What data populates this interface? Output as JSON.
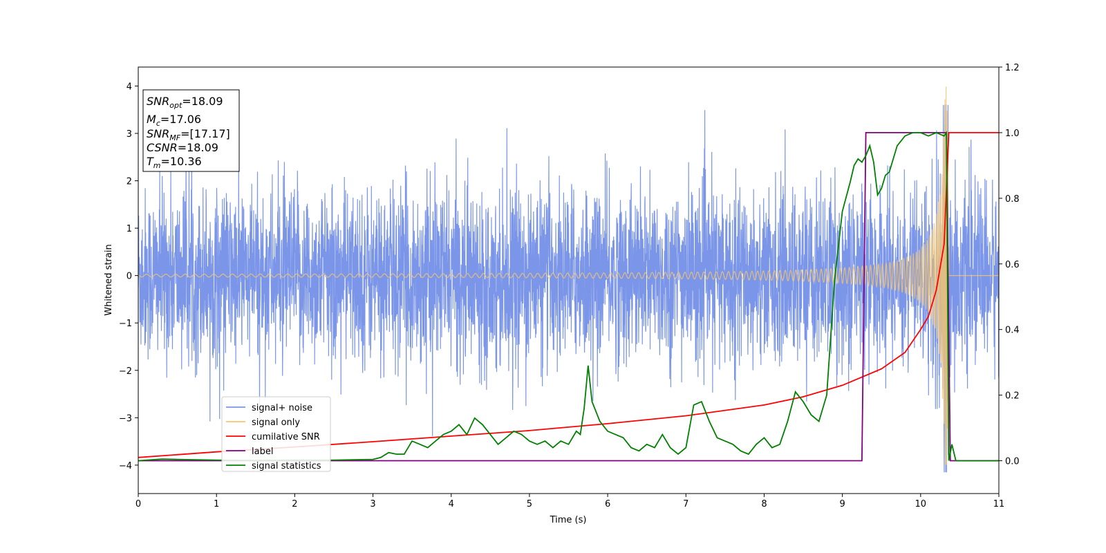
{
  "chart_data": {
    "type": "line",
    "xlabel": "Time (s)",
    "ylabel_left": "Whitened strain",
    "xlim": [
      0,
      11
    ],
    "ylim_left": [
      -4.6,
      4.4
    ],
    "ylim_right": [
      -0.1,
      1.2
    ],
    "x_ticks": [
      0,
      1,
      2,
      3,
      4,
      5,
      6,
      7,
      8,
      9,
      10,
      11
    ],
    "y_ticks_left": [
      -4,
      -3,
      -2,
      -1,
      0,
      1,
      2,
      3,
      4
    ],
    "y_ticks_right": [
      0.0,
      0.2,
      0.4,
      0.6,
      0.8,
      1.0,
      1.2
    ],
    "legend_position": "lower-left",
    "info_box": {
      "snr_opt": {
        "sym": "SNR",
        "sub": "opt",
        "value": "=18.09"
      },
      "mc": {
        "sym": "M",
        "sub": "c",
        "value": "=17.06"
      },
      "snr_mf": {
        "sym": "SNR",
        "sub": "MF",
        "value": "=[17.17]"
      },
      "csnr": {
        "sym": "CSNR",
        "sub": "",
        "value": "=18.09"
      },
      "tm": {
        "sym": "T",
        "sub": "m",
        "value": "=10.36"
      }
    },
    "series": [
      {
        "name": "signal+ noise",
        "axis": "left",
        "color": "#7b96e8",
        "description_values": "stochastic whitened noise, std about 0.9, peaks up to about ±3.6, plus signal",
        "noise_std": 0.9
      },
      {
        "name": "signal only",
        "axis": "left",
        "color": "#f5c46e",
        "chirp": {
          "t_merge": 10.36,
          "amp_start": 0.02,
          "amp_peak": 4.0,
          "f_start": 8,
          "f_peak": 60
        }
      },
      {
        "name": "cumilative SNR",
        "axis": "right",
        "color": "#ff0000",
        "x": [
          0,
          1,
          2,
          3,
          4,
          5,
          6,
          7,
          8,
          8.5,
          9,
          9.5,
          9.8,
          10.0,
          10.1,
          10.2,
          10.3,
          10.36,
          10.4,
          11
        ],
        "y": [
          0.01,
          0.027,
          0.042,
          0.058,
          0.075,
          0.092,
          0.113,
          0.137,
          0.17,
          0.195,
          0.23,
          0.28,
          0.33,
          0.4,
          0.44,
          0.52,
          0.66,
          1.0,
          1.0,
          1.0
        ]
      },
      {
        "name": "label",
        "axis": "right",
        "color": "#800080",
        "x": [
          0,
          9.25,
          9.3,
          10.33,
          10.38,
          11
        ],
        "y": [
          0,
          0,
          1,
          1,
          0,
          0
        ]
      },
      {
        "name": "signal statistics",
        "axis": "right",
        "color": "#008000",
        "x": [
          0,
          0.3,
          0.5,
          1.0,
          1.5,
          2.0,
          2.5,
          3.0,
          3.1,
          3.2,
          3.3,
          3.4,
          3.5,
          3.6,
          3.7,
          3.8,
          3.9,
          4.0,
          4.1,
          4.2,
          4.3,
          4.4,
          4.5,
          4.6,
          4.7,
          4.8,
          4.9,
          5.0,
          5.1,
          5.2,
          5.3,
          5.4,
          5.5,
          5.6,
          5.65,
          5.7,
          5.75,
          5.8,
          5.9,
          6.0,
          6.1,
          6.2,
          6.3,
          6.4,
          6.5,
          6.6,
          6.7,
          6.8,
          6.9,
          7.0,
          7.1,
          7.2,
          7.3,
          7.4,
          7.5,
          7.6,
          7.7,
          7.8,
          7.9,
          8.0,
          8.1,
          8.2,
          8.3,
          8.4,
          8.5,
          8.6,
          8.7,
          8.8,
          8.9,
          9.0,
          9.1,
          9.15,
          9.2,
          9.25,
          9.3,
          9.35,
          9.4,
          9.45,
          9.5,
          9.55,
          9.6,
          9.7,
          9.8,
          9.9,
          10.0,
          10.1,
          10.2,
          10.3,
          10.33,
          10.36,
          10.4,
          10.45,
          10.6,
          11
        ],
        "y": [
          0.0,
          0.005,
          0.004,
          0.002,
          0.001,
          0.002,
          0.002,
          0.004,
          0.01,
          0.025,
          0.02,
          0.02,
          0.06,
          0.05,
          0.04,
          0.06,
          0.08,
          0.09,
          0.11,
          0.08,
          0.13,
          0.11,
          0.08,
          0.05,
          0.07,
          0.09,
          0.08,
          0.06,
          0.05,
          0.06,
          0.04,
          0.06,
          0.05,
          0.09,
          0.08,
          0.16,
          0.29,
          0.18,
          0.12,
          0.09,
          0.08,
          0.07,
          0.04,
          0.03,
          0.05,
          0.04,
          0.08,
          0.04,
          0.02,
          0.04,
          0.17,
          0.18,
          0.12,
          0.07,
          0.06,
          0.05,
          0.03,
          0.02,
          0.05,
          0.07,
          0.04,
          0.05,
          0.12,
          0.21,
          0.18,
          0.14,
          0.12,
          0.2,
          0.55,
          0.76,
          0.85,
          0.9,
          0.92,
          0.91,
          0.93,
          0.96,
          0.91,
          0.81,
          0.83,
          0.87,
          0.88,
          0.96,
          0.99,
          1.0,
          1.0,
          0.99,
          1.0,
          0.99,
          1.0,
          0.0,
          0.05,
          0.0,
          0.0,
          0.0
        ]
      }
    ]
  }
}
